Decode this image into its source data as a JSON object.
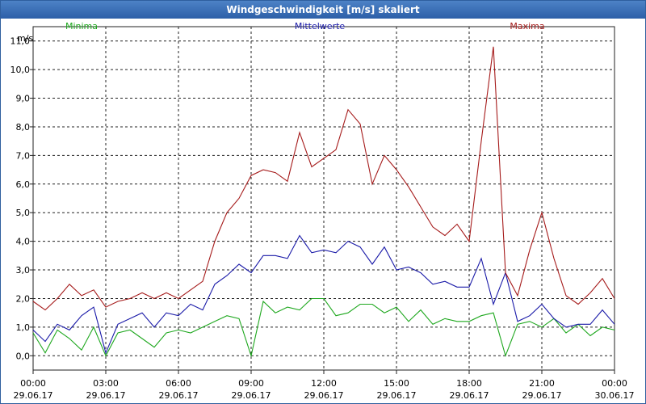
{
  "window": {
    "title": "Windgeschwindigkeit [m/s] skaliert"
  },
  "chart_data": {
    "type": "line",
    "title": "Windgeschwindigkeit [m/s] skaliert",
    "ylabel": "m/s",
    "xlabel": "",
    "ylim": [
      -0.5,
      11.5
    ],
    "xlim_hours": [
      0,
      24
    ],
    "grid": true,
    "yticks": [
      0,
      1,
      2,
      3,
      4,
      5,
      6,
      7,
      8,
      9,
      10,
      11
    ],
    "ytick_labels": [
      "0,0",
      "1,0",
      "2,0",
      "3,0",
      "4,0",
      "5,0",
      "6,0",
      "7,0",
      "8,0",
      "9,0",
      "10,0",
      "11,0"
    ],
    "xticks": [
      {
        "hour": 0,
        "time": "00:00",
        "date": "29.06.17"
      },
      {
        "hour": 3,
        "time": "03:00",
        "date": "29.06.17"
      },
      {
        "hour": 6,
        "time": "06:00",
        "date": "29.06.17"
      },
      {
        "hour": 9,
        "time": "09:00",
        "date": "29.06.17"
      },
      {
        "hour": 12,
        "time": "12:00",
        "date": "29.06.17"
      },
      {
        "hour": 15,
        "time": "15:00",
        "date": "29.06.17"
      },
      {
        "hour": 18,
        "time": "18:00",
        "date": "29.06.17"
      },
      {
        "hour": 21,
        "time": "21:00",
        "date": "29.06.17"
      },
      {
        "hour": 24,
        "time": "00:00",
        "date": "30.06.17"
      }
    ],
    "x_hours": [
      0,
      0.5,
      1,
      1.5,
      2,
      2.5,
      3,
      3.5,
      4,
      4.5,
      5,
      5.5,
      6,
      6.5,
      7,
      7.5,
      8,
      8.5,
      9,
      9.5,
      10,
      10.5,
      11,
      11.5,
      12,
      12.5,
      13,
      13.5,
      14,
      14.5,
      15,
      15.5,
      16,
      16.5,
      17,
      17.5,
      18,
      18.5,
      19,
      19.5,
      20,
      20.5,
      21,
      21.5,
      22,
      22.5,
      23,
      23.5,
      24
    ],
    "series": [
      {
        "name": "Minima",
        "color": "#1fa81f",
        "values": [
          0.8,
          0.1,
          0.9,
          0.6,
          0.2,
          1.0,
          0.0,
          0.8,
          0.9,
          0.6,
          0.3,
          0.8,
          0.9,
          0.8,
          1.0,
          1.2,
          1.4,
          1.3,
          0.0,
          1.9,
          1.5,
          1.7,
          1.6,
          2.0,
          2.0,
          1.4,
          1.5,
          1.8,
          1.8,
          1.5,
          1.7,
          1.2,
          1.6,
          1.1,
          1.3,
          1.2,
          1.2,
          1.4,
          1.5,
          0.0,
          1.1,
          1.2,
          1.0,
          1.3,
          0.8,
          1.1,
          0.7,
          1.0,
          0.9
        ]
      },
      {
        "name": "Mittelwerte",
        "color": "#1a1aa8",
        "values": [
          0.9,
          0.5,
          1.1,
          0.9,
          1.4,
          1.7,
          0.1,
          1.1,
          1.3,
          1.5,
          1.0,
          1.5,
          1.4,
          1.8,
          1.6,
          2.5,
          2.8,
          3.2,
          2.9,
          3.5,
          3.5,
          3.4,
          4.2,
          3.6,
          3.7,
          3.6,
          4.0,
          3.8,
          3.2,
          3.8,
          3.0,
          3.1,
          2.9,
          2.5,
          2.6,
          2.4,
          2.4,
          3.4,
          1.8,
          2.9,
          1.2,
          1.4,
          1.8,
          1.3,
          1.0,
          1.1,
          1.1,
          1.6,
          1.1
        ]
      },
      {
        "name": "Maxima",
        "color": "#a51a1a",
        "values": [
          1.9,
          1.6,
          2.0,
          2.5,
          2.1,
          2.3,
          1.7,
          1.9,
          2.0,
          2.2,
          2.0,
          2.2,
          2.0,
          2.3,
          2.6,
          4.0,
          5.0,
          5.5,
          6.3,
          6.5,
          6.4,
          6.1,
          7.8,
          6.6,
          6.9,
          7.2,
          8.6,
          8.1,
          6.0,
          7.0,
          6.5,
          5.9,
          5.2,
          4.5,
          4.2,
          4.6,
          4.0,
          7.5,
          10.8,
          2.9,
          2.1,
          3.7,
          5.0,
          3.4,
          2.1,
          1.8,
          2.2,
          2.7,
          2.0
        ]
      }
    ]
  }
}
